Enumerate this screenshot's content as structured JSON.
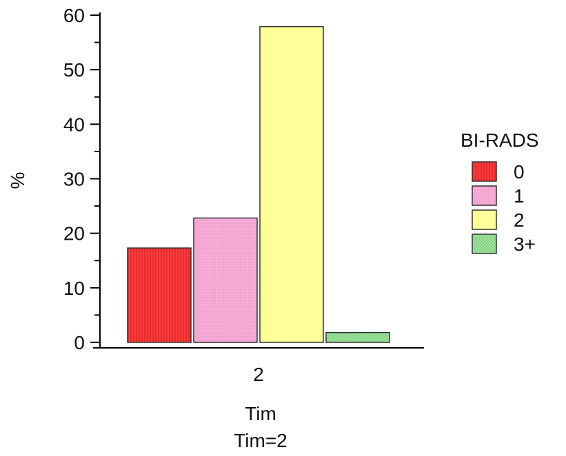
{
  "chart_data": {
    "type": "bar",
    "categories": [
      "2"
    ],
    "series": [
      {
        "name": "0",
        "values": [
          17.3
        ],
        "color": "#ff3b3b"
      },
      {
        "name": "1",
        "values": [
          22.8
        ],
        "color": "#f6aad6"
      },
      {
        "name": "2",
        "values": [
          57.9
        ],
        "color": "#ffff99"
      },
      {
        "name": "3+",
        "values": [
          1.8
        ],
        "color": "#a6e6a6"
      }
    ],
    "ylabel": "%",
    "xlabel": "Tim",
    "subtitle": "Tim=2",
    "yticks": [
      "0",
      "10",
      "20",
      "30",
      "40",
      "50",
      "60"
    ],
    "ylim": [
      0,
      60
    ],
    "grid": false,
    "legend": {
      "title": "BI-RADS",
      "placement": "right"
    }
  }
}
